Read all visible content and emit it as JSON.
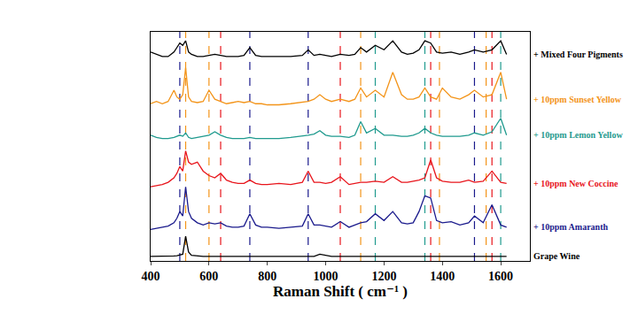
{
  "chart_data": {
    "type": "line",
    "x_label": "Raman Shift ( cm⁻¹ )",
    "x": [
      400,
      420,
      440,
      460,
      480,
      490,
      500,
      510,
      520,
      530,
      540,
      560,
      580,
      600,
      620,
      640,
      660,
      680,
      700,
      720,
      740,
      760,
      780,
      800,
      840,
      880,
      920,
      940,
      960,
      980,
      1000,
      1020,
      1050,
      1080,
      1100,
      1120,
      1140,
      1170,
      1200,
      1230,
      1260,
      1280,
      1300,
      1320,
      1340,
      1360,
      1380,
      1400,
      1430,
      1460,
      1490,
      1510,
      1540,
      1570,
      1600,
      1620
    ],
    "xlim": [
      400,
      1700
    ],
    "xticks": [
      400,
      600,
      800,
      1000,
      1200,
      1400,
      1600
    ],
    "ylim": [
      0,
      102
    ],
    "tick_labels": "x",
    "grid": false,
    "series": [
      {
        "name": "Grape Wine",
        "color": "#000000",
        "values": [
          2,
          2,
          2,
          2,
          2.2,
          2.3,
          2.5,
          3,
          11,
          4,
          2.5,
          2.2,
          2,
          2,
          2,
          2,
          2,
          2,
          2,
          2,
          2,
          2,
          2,
          2,
          2,
          2,
          2,
          2,
          2,
          3,
          2.5,
          2,
          2,
          2,
          2,
          2,
          2,
          2,
          2,
          2,
          2,
          2,
          2,
          2,
          2,
          2,
          2,
          2,
          2,
          2,
          2,
          2,
          2,
          2,
          2,
          2
        ]
      },
      {
        "name": "+ 10ppm Amaranth",
        "color": "#1a1a8c",
        "values": [
          14,
          14.5,
          15,
          15.5,
          17,
          19,
          22,
          20,
          33,
          22,
          19,
          17,
          16,
          17,
          16.5,
          17,
          15.5,
          15,
          15,
          15.5,
          21,
          16,
          15,
          15,
          14.5,
          15,
          15.5,
          21,
          16,
          16,
          15.5,
          15,
          17.5,
          15,
          16,
          17,
          17.5,
          21,
          18,
          22,
          17,
          16.5,
          17,
          22,
          29,
          28,
          18,
          17,
          17.5,
          16,
          17,
          20,
          17,
          25,
          16,
          15
        ]
      },
      {
        "name": "+ 10ppm New Coccine",
        "color": "#e8141b",
        "values": [
          33,
          33.5,
          34,
          35,
          37,
          39,
          42,
          40,
          49,
          44,
          43,
          44,
          40,
          38,
          37,
          39,
          36,
          35,
          34.5,
          34.5,
          36,
          34.5,
          34,
          34,
          34.5,
          34,
          35,
          40,
          35,
          35,
          34.5,
          35,
          37.5,
          34,
          34.5,
          35,
          35,
          35.5,
          35,
          37.5,
          35,
          35,
          35.5,
          36,
          37,
          45,
          37,
          35.5,
          35,
          35,
          36,
          35,
          35.5,
          40,
          35,
          34.5
        ]
      },
      {
        "name": "+ 10ppm Lemon Yellow",
        "color": "#1f9a8e",
        "values": [
          56,
          55,
          54.5,
          54.5,
          55,
          55.5,
          56,
          55.5,
          57,
          55,
          54.5,
          55,
          55.5,
          56,
          57.5,
          56,
          55,
          54.5,
          54.5,
          54.5,
          55,
          54.5,
          54.5,
          54.5,
          54.5,
          55,
          55.5,
          56,
          56.5,
          58,
          56,
          55.5,
          55.5,
          55,
          56,
          62,
          57,
          59,
          56,
          56,
          55.5,
          55.5,
          56,
          57,
          59,
          57,
          56,
          55.5,
          55.5,
          55.5,
          56,
          57,
          56,
          57.5,
          63.5,
          56
        ]
      },
      {
        "name": "+ 10ppm Sunset Yellow",
        "color": "#f39419",
        "values": [
          70,
          71,
          70,
          71,
          76,
          73,
          72,
          74,
          86,
          73,
          71,
          70.5,
          71,
          76,
          72,
          71,
          70,
          70.5,
          71,
          70.5,
          71,
          70,
          70,
          69.5,
          69.5,
          70,
          70.5,
          71,
          72,
          74,
          72,
          71,
          72,
          71,
          72,
          77,
          73,
          76,
          73,
          84,
          74,
          72,
          72,
          73,
          77,
          73,
          72,
          77,
          73,
          72,
          74,
          76,
          73,
          74,
          84,
          72
        ]
      },
      {
        "name": "+ Mixed Four Pigments",
        "color": "#000000",
        "values": [
          93,
          92,
          91,
          91,
          93,
          95,
          97,
          96,
          98,
          93,
          92,
          91,
          91,
          91.5,
          92,
          91.5,
          91,
          91,
          91,
          91.5,
          95,
          91.5,
          91,
          91,
          91,
          91,
          91.5,
          94,
          91.5,
          92,
          91.5,
          91,
          92,
          91.5,
          92,
          95,
          93,
          96,
          94,
          98,
          93,
          92,
          92.5,
          94,
          98,
          97,
          93,
          92.5,
          93,
          92,
          93,
          94,
          93,
          94,
          98,
          92
        ]
      }
    ],
    "reference_lines": [
      {
        "x": 500,
        "color": "#1a1a8c"
      },
      {
        "x": 520,
        "color": "#f39419"
      },
      {
        "x": 600,
        "color": "#f39419"
      },
      {
        "x": 640,
        "color": "#e8141b"
      },
      {
        "x": 740,
        "color": "#1a1a8c"
      },
      {
        "x": 940,
        "color": "#1a1a8c"
      },
      {
        "x": 1050,
        "color": "#e8141b"
      },
      {
        "x": 1120,
        "color": "#f39419"
      },
      {
        "x": 1170,
        "color": "#1f9a8e"
      },
      {
        "x": 1340,
        "color": "#1f9a8e"
      },
      {
        "x": 1360,
        "color": "#e8141b"
      },
      {
        "x": 1390,
        "color": "#f39419"
      },
      {
        "x": 1510,
        "color": "#1a1a8c"
      },
      {
        "x": 1550,
        "color": "#f39419"
      },
      {
        "x": 1570,
        "color": "#e8141b"
      },
      {
        "x": 1600,
        "color": "#1f9a8e"
      }
    ]
  }
}
